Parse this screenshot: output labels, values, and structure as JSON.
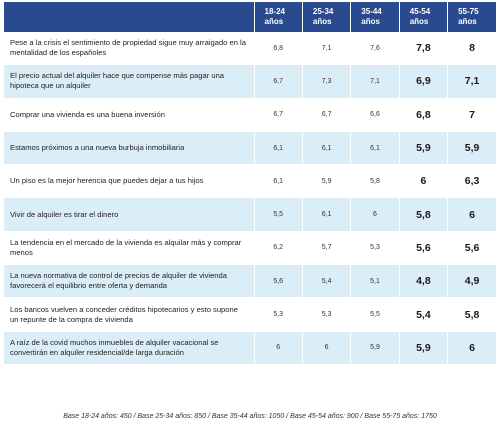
{
  "chart_data": {
    "type": "table",
    "columns": [
      "18-24 años",
      "25-34 años",
      "35-44 años",
      "45-54 años",
      "55-75 años"
    ],
    "rows": [
      {
        "label": "Pese a la crisis el sentimiento de propiedad sigue muy arraigado en la mentalidad de los españoles",
        "values": [
          "6,8",
          "7,1",
          "7,6",
          "7,8",
          "8"
        ]
      },
      {
        "label": "El precio actual del alquiler hace que compense más pagar una hipoteca que un alquiler",
        "values": [
          "6,7",
          "7,3",
          "7,1",
          "6,9",
          "7,1"
        ]
      },
      {
        "label": "Comprar una vivienda es una buena inversión",
        "values": [
          "6,7",
          "6,7",
          "6,6",
          "6,8",
          "7"
        ]
      },
      {
        "label": "Estamos próximos a una nueva burbuja inmobiliaria",
        "values": [
          "6,1",
          "6,1",
          "6,1",
          "5,9",
          "5,9"
        ]
      },
      {
        "label": "Un piso es la mejor herencia que puedes dejar a tus hijos",
        "values": [
          "6,1",
          "5,9",
          "5,8",
          "6",
          "6,3"
        ]
      },
      {
        "label": "Vivir de alquiler es tirar el dinero",
        "values": [
          "5,5",
          "6,1",
          "6",
          "5,8",
          "6"
        ]
      },
      {
        "label": "La tendencia en el mercado de la vivienda es alquilar más y comprar menos",
        "values": [
          "6,2",
          "5,7",
          "5,3",
          "5,6",
          "5,6"
        ]
      },
      {
        "label": "La nueva normativa de control de precios de alquiler de vivienda favorecerá el equilibrio entre oferta y demanda",
        "values": [
          "5,6",
          "5,4",
          "5,1",
          "4,8",
          "4,9"
        ]
      },
      {
        "label": "Los bancos vuelven a conceder créditos hipotecarios y esto supone un repunte de la compra de vivienda",
        "values": [
          "5,3",
          "5,3",
          "5,5",
          "5,4",
          "5,8"
        ]
      },
      {
        "label": "A raíz de la covid muchos inmuebles de alquiler vacacional se convertirán en alquiler residencial/de larga duración",
        "values": [
          "6",
          "6",
          "5,9",
          "5,9",
          "6"
        ]
      }
    ],
    "highlighted_columns": [
      "45-54 años",
      "55-75 años"
    ],
    "footnote": "Base 18-24 años: 450 / Base 25-34 años: 850 / Base 35-44 años: 1050 / Base 45-54 años: 900 / Base 55-75 años: 1750"
  },
  "colors": {
    "header_bg": "#2a4a8f",
    "header_text": "#ffffff",
    "stripe": "#dbeef7"
  }
}
